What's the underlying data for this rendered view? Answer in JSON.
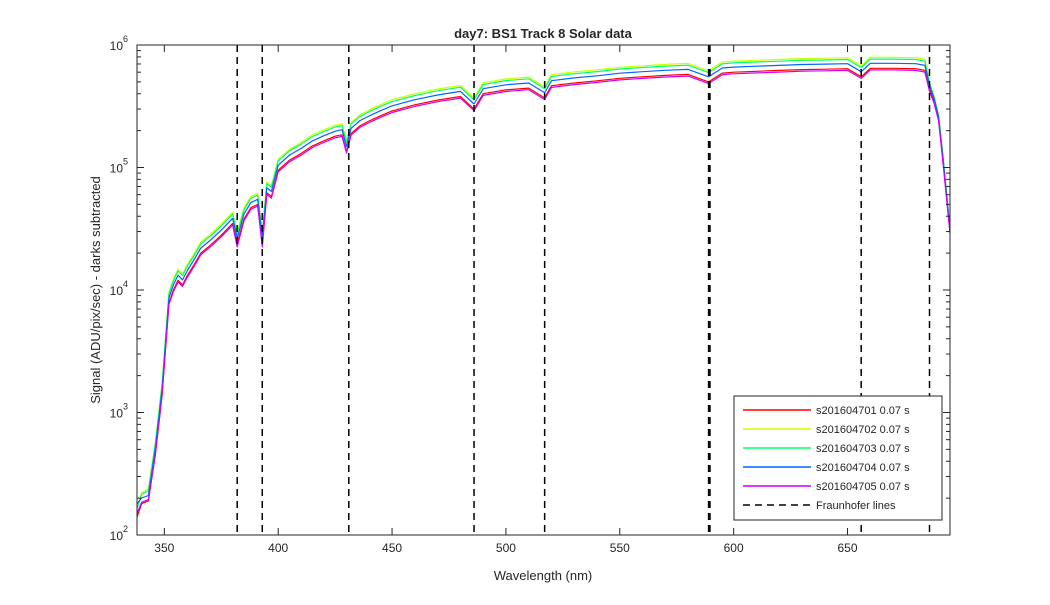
{
  "chart_data": {
    "type": "line",
    "title": "day7: BS1  Track 8 Solar data",
    "xlabel": "Wavelength (nm)",
    "ylabel": "Signal (ADU/pix/sec) - darks subtracted",
    "xlim": [
      338,
      695
    ],
    "ylim": [
      100,
      1000000
    ],
    "yscale": "log",
    "grid": false,
    "legend_position": "bottom-right",
    "x_ticks": [
      350,
      400,
      450,
      500,
      550,
      600,
      650
    ],
    "x_tick_labels": [
      "350",
      "400",
      "450",
      "500",
      "550",
      "600",
      "650"
    ],
    "y_ticks": [
      100,
      1000,
      10000,
      100000,
      1000000
    ],
    "y_tick_labels": [
      {
        "base": "10",
        "exp": "2"
      },
      {
        "base": "10",
        "exp": "3"
      },
      {
        "base": "10",
        "exp": "4"
      },
      {
        "base": "10",
        "exp": "5"
      },
      {
        "base": "10",
        "exp": "6"
      }
    ],
    "x": [
      338,
      340,
      343,
      346,
      349,
      352,
      354,
      356,
      358,
      360,
      363,
      366,
      370,
      375,
      380,
      382,
      385,
      388,
      391,
      393,
      395,
      397,
      400,
      405,
      410,
      415,
      420,
      425,
      428,
      430,
      432,
      436,
      440,
      445,
      450,
      460,
      470,
      480,
      486,
      490,
      500,
      510,
      517,
      520,
      530,
      540,
      550,
      560,
      570,
      580,
      589,
      595,
      600,
      610,
      620,
      630,
      640,
      650,
      656,
      660,
      670,
      680,
      684,
      686,
      688,
      690,
      692,
      695
    ],
    "series": [
      {
        "name": "s201604701 0.07 s",
        "color": "#ff0000",
        "values": [
          140,
          180,
          190,
          450,
          1400,
          7800,
          10000,
          12000,
          11000,
          13000,
          16000,
          20000,
          23000,
          28000,
          35000,
          24000,
          38000,
          47000,
          50000,
          24000,
          62000,
          58000,
          95000,
          115000,
          130000,
          150000,
          165000,
          180000,
          185000,
          135000,
          190000,
          220000,
          240000,
          265000,
          290000,
          325000,
          355000,
          380000,
          300000,
          400000,
          430000,
          445000,
          370000,
          465000,
          490000,
          510000,
          535000,
          550000,
          565000,
          575000,
          500000,
          590000,
          600000,
          610000,
          620000,
          630000,
          635000,
          640000,
          550000,
          645000,
          645000,
          640000,
          620000,
          440000,
          350000,
          250000,
          110000,
          30000
        ]
      },
      {
        "name": "s201604702 0.07 s",
        "color": "#ccff00",
        "values": [
          170,
          220,
          240,
          560,
          1750,
          9600,
          12300,
          14800,
          13500,
          16000,
          19700,
          24600,
          28300,
          34500,
          43000,
          30000,
          47000,
          58000,
          61500,
          30000,
          76000,
          71000,
          117000,
          141000,
          160000,
          185000,
          203000,
          221000,
          228000,
          166000,
          234000,
          270000,
          295000,
          326000,
          357000,
          400000,
          437000,
          467000,
          370000,
          492000,
          529000,
          547000,
          455000,
          572000,
          603000,
          627000,
          658000,
          677000,
          695000,
          707000,
          615000,
          726000,
          738000,
          750000,
          763000,
          775000,
          781000,
          787000,
          677000,
          793000,
          793000,
          787000,
          763000,
          500000,
          380000,
          270000,
          120000,
          32000
        ]
      },
      {
        "name": "s201604703 0.07 s",
        "color": "#00ff66",
        "values": [
          165,
          215,
          230,
          540,
          1700,
          9300,
          11900,
          14300,
          13100,
          15500,
          19000,
          23800,
          27400,
          33300,
          41700,
          28500,
          45200,
          56000,
          59500,
          28500,
          73800,
          69000,
          113000,
          137000,
          155000,
          179000,
          196000,
          214000,
          220000,
          161000,
          226000,
          262000,
          286000,
          316000,
          345000,
          387000,
          423000,
          452000,
          357000,
          476000,
          512000,
          530000,
          440000,
          553000,
          583000,
          607000,
          637000,
          655000,
          672000,
          684000,
          595000,
          702000,
          714000,
          726000,
          738000,
          750000,
          755000,
          761000,
          655000,
          767000,
          767000,
          761000,
          738000,
          490000,
          375000,
          265000,
          118000,
          31500
        ]
      },
      {
        "name": "s201604704 0.07 s",
        "color": "#0066ff",
        "values": [
          180,
          200,
          210,
          500,
          1550,
          8600,
          11000,
          13200,
          12100,
          14300,
          17600,
          22000,
          25300,
          30800,
          38500,
          26500,
          41800,
          51700,
          55000,
          26500,
          68200,
          63800,
          104500,
          126500,
          143000,
          165000,
          181500,
          198000,
          203500,
          148500,
          209000,
          242000,
          264000,
          291500,
          319000,
          357500,
          390500,
          418000,
          330000,
          440000,
          473000,
          489500,
          407000,
          511500,
          539000,
          561000,
          588500,
          605000,
          621500,
          632500,
          550000,
          649000,
          660000,
          671000,
          682000,
          693000,
          698500,
          704000,
          605000,
          709500,
          709500,
          704000,
          682000,
          470000,
          365000,
          258000,
          115000,
          31000
        ]
      },
      {
        "name": "s201604705 0.07 s",
        "color": "#cc00ff",
        "values": [
          150,
          185,
          195,
          440,
          1380,
          7600,
          9700,
          11600,
          10700,
          12600,
          15500,
          19400,
          22300,
          27200,
          34000,
          22500,
          36800,
          45600,
          48500,
          22500,
          60100,
          56300,
          92100,
          111500,
          126000,
          145500,
          160000,
          174600,
          179400,
          131000,
          184300,
          213400,
          232800,
          257000,
          281300,
          315300,
          344400,
          368600,
          291000,
          388000,
          417100,
          431700,
          359000,
          451000,
          475300,
          494700,
          519000,
          533500,
          548000,
          557800,
          485000,
          572300,
          582000,
          591700,
          601400,
          611100,
          616000,
          620800,
          534000,
          625700,
          625700,
          620800,
          601400,
          420000,
          335000,
          240000,
          105000,
          29000
        ]
      }
    ],
    "fraunhofer_lines": {
      "name": "Fraunhofer lines",
      "color": "#000000",
      "x": [
        382,
        393,
        431,
        486,
        517,
        589,
        589.6,
        656,
        686
      ]
    }
  }
}
